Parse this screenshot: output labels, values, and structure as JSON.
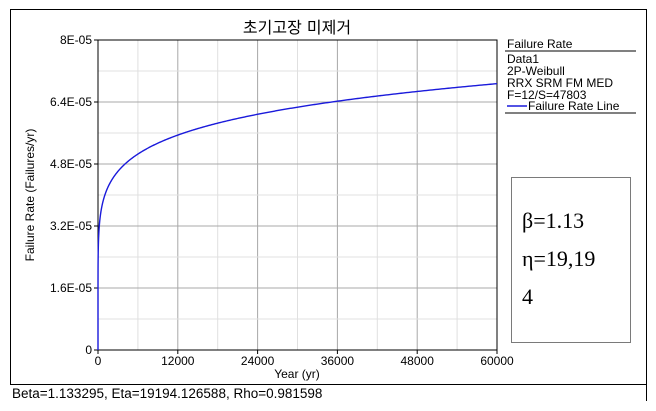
{
  "chart_data": {
    "type": "line",
    "title": "초기고장 미제거",
    "xlabel": "Year (yr)",
    "ylabel": "Failure Rate (Failures/yr)",
    "xlim": [
      0,
      60000
    ],
    "ylim": [
      0,
      8e-05
    ],
    "x_ticks": [
      "0",
      "12000",
      "24000",
      "36000",
      "48000",
      "60000"
    ],
    "y_ticks": [
      "0",
      "1.6E-05",
      "3.2E-05",
      "4.8E-05",
      "6.4E-05",
      "8E-05"
    ],
    "grid": true,
    "series": [
      {
        "name": "Failure Rate Line",
        "color": "#1a1adb",
        "model": "weibull_2p_failure_rate",
        "beta": 1.133295,
        "eta": 19194.126588,
        "x": [
          0,
          6000,
          12000,
          24000,
          36000,
          48000,
          60000
        ],
        "y": [
          0,
          5.06e-05,
          5.55e-05,
          6.06e-05,
          6.4e-05,
          6.66e-05,
          6.89e-05
        ]
      }
    ]
  },
  "legend": {
    "heading": "Failure Rate",
    "lines": [
      "Data1",
      "2P-Weibull",
      "RRX SRM FM MED",
      "F=12/S=47803"
    ],
    "series_label": "Failure Rate Line"
  },
  "param_box": {
    "beta_line": "β=1.13",
    "eta_line1": "η=19,19",
    "eta_line2": "4"
  },
  "status": {
    "text": "Beta=1.133295, Eta=19194.126588, Rho=0.981598"
  }
}
